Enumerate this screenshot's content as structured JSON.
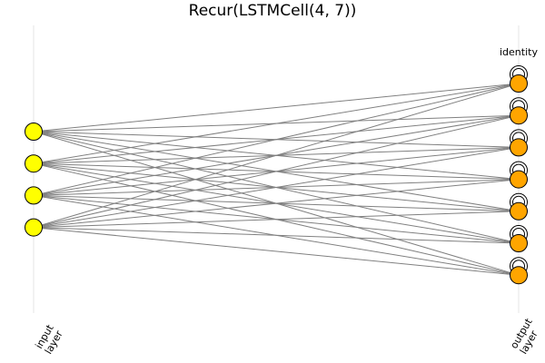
{
  "title": "Recur(LSTMCell(4, 7))",
  "layers": [
    {
      "label": [
        "input",
        "layer"
      ],
      "nodes": 4,
      "color": "#ffff00"
    },
    {
      "label": [
        "output",
        "layer"
      ],
      "nodes": 7,
      "color": "#ffa500",
      "activation": "identity",
      "recurrent": true
    }
  ],
  "edge_color": "#808080"
}
